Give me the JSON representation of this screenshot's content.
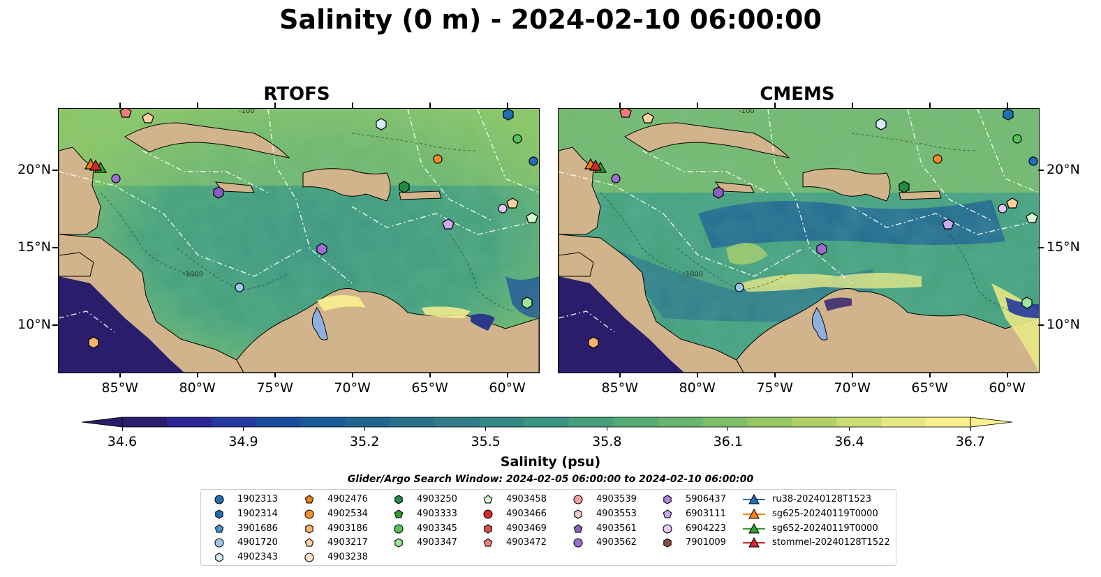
{
  "title": "Salinity (0 m) - 2024-02-10 06:00:00",
  "panels": {
    "left": {
      "title": "RTOFS"
    },
    "right": {
      "title": "CMEMS"
    }
  },
  "axes": {
    "lon_ticks": [
      "85°W",
      "80°W",
      "75°W",
      "70°W",
      "65°W",
      "60°W"
    ],
    "lat_ticks": [
      "20°N",
      "15°N",
      "10°N"
    ],
    "lon_range": [
      -89,
      -58
    ],
    "lat_range": [
      7,
      24
    ]
  },
  "contour_labels": [
    "-100",
    "-1000"
  ],
  "colorbar": {
    "label": "Salinity (psu)",
    "ticks": [
      "34.6",
      "34.9",
      "35.2",
      "35.5",
      "35.8",
      "36.1",
      "36.4",
      "36.7"
    ],
    "range": [
      34.6,
      36.7
    ],
    "colors": [
      "#2a1d6b",
      "#2b2694",
      "#243aa0",
      "#1b4d9e",
      "#1a5a96",
      "#216690",
      "#29728c",
      "#2f7d88",
      "#338985",
      "#3a9482",
      "#46a07d",
      "#55ab76",
      "#67b56f",
      "#7dbf69",
      "#95c863",
      "#b0d166",
      "#cadd72",
      "#e7e884",
      "#f9ef8e"
    ],
    "extend": "both"
  },
  "search_window": "Glider/Argo Search Window: 2024-02-05 06:00:00 to 2024-02-10 06:00:00",
  "legend": {
    "columns": [
      [
        {
          "label": "1902313",
          "marker": "circle",
          "color": "#1f6fb4"
        },
        {
          "label": "1902314",
          "marker": "hexagon",
          "color": "#1f6fb4"
        },
        {
          "label": "3901686",
          "marker": "pentagon",
          "color": "#4a90c8"
        },
        {
          "label": "4901720",
          "marker": "circle",
          "color": "#9ec8ea"
        },
        {
          "label": "4902343",
          "marker": "hexagon",
          "color": "#d8ecf8"
        }
      ],
      [
        {
          "label": "4902476",
          "marker": "pentagon",
          "color": "#f07c12"
        },
        {
          "label": "4902534",
          "marker": "circle",
          "color": "#f28d2a"
        },
        {
          "label": "4903186",
          "marker": "hexagon",
          "color": "#f9b26a"
        },
        {
          "label": "4903217",
          "marker": "pentagon",
          "color": "#fcd0a0"
        },
        {
          "label": "4903238",
          "marker": "circle",
          "color": "#fde3c6"
        }
      ],
      [
        {
          "label": "4903250",
          "marker": "hexagon",
          "color": "#238b45"
        },
        {
          "label": "4903333",
          "marker": "pentagon",
          "color": "#2ca02c"
        },
        {
          "label": "4903345",
          "marker": "circle",
          "color": "#58c35a"
        },
        {
          "label": "4903347",
          "marker": "hexagon",
          "color": "#9ee69a"
        }
      ],
      [
        {
          "label": "4903458",
          "marker": "pentagon",
          "color": "#d4f7cf"
        },
        {
          "label": "4903466",
          "marker": "circle",
          "color": "#d62728"
        },
        {
          "label": "4903469",
          "marker": "hexagon",
          "color": "#e04a4a"
        },
        {
          "label": "4903472",
          "marker": "pentagon",
          "color": "#ef7b7b"
        }
      ],
      [
        {
          "label": "4903539",
          "marker": "circle",
          "color": "#f4a0a0"
        },
        {
          "label": "4903553",
          "marker": "hexagon",
          "color": "#f9c8c8"
        },
        {
          "label": "4903561",
          "marker": "pentagon",
          "color": "#8b5fbf"
        },
        {
          "label": "4903562",
          "marker": "circle",
          "color": "#9d6ed0"
        }
      ],
      [
        {
          "label": "5906437",
          "marker": "hexagon",
          "color": "#b085e0"
        },
        {
          "label": "6903111",
          "marker": "pentagon",
          "color": "#cdaaf0"
        },
        {
          "label": "6904223",
          "marker": "circle",
          "color": "#e3c8f8"
        },
        {
          "label": "7901009",
          "marker": "hexagon",
          "color": "#8c4f3c"
        }
      ],
      [
        {
          "label": "ru38-20240128T1523",
          "marker": "triangle-line",
          "color": "#1f6fb4"
        },
        {
          "label": "sg625-20240119T0000",
          "marker": "triangle-line",
          "color": "#ff7f0e"
        },
        {
          "label": "sg652-20240119T0000",
          "marker": "triangle-line",
          "color": "#2ca02c"
        },
        {
          "label": "stommel-20240128T1522",
          "marker": "triangle-line",
          "color": "#d62728"
        }
      ]
    ]
  }
}
